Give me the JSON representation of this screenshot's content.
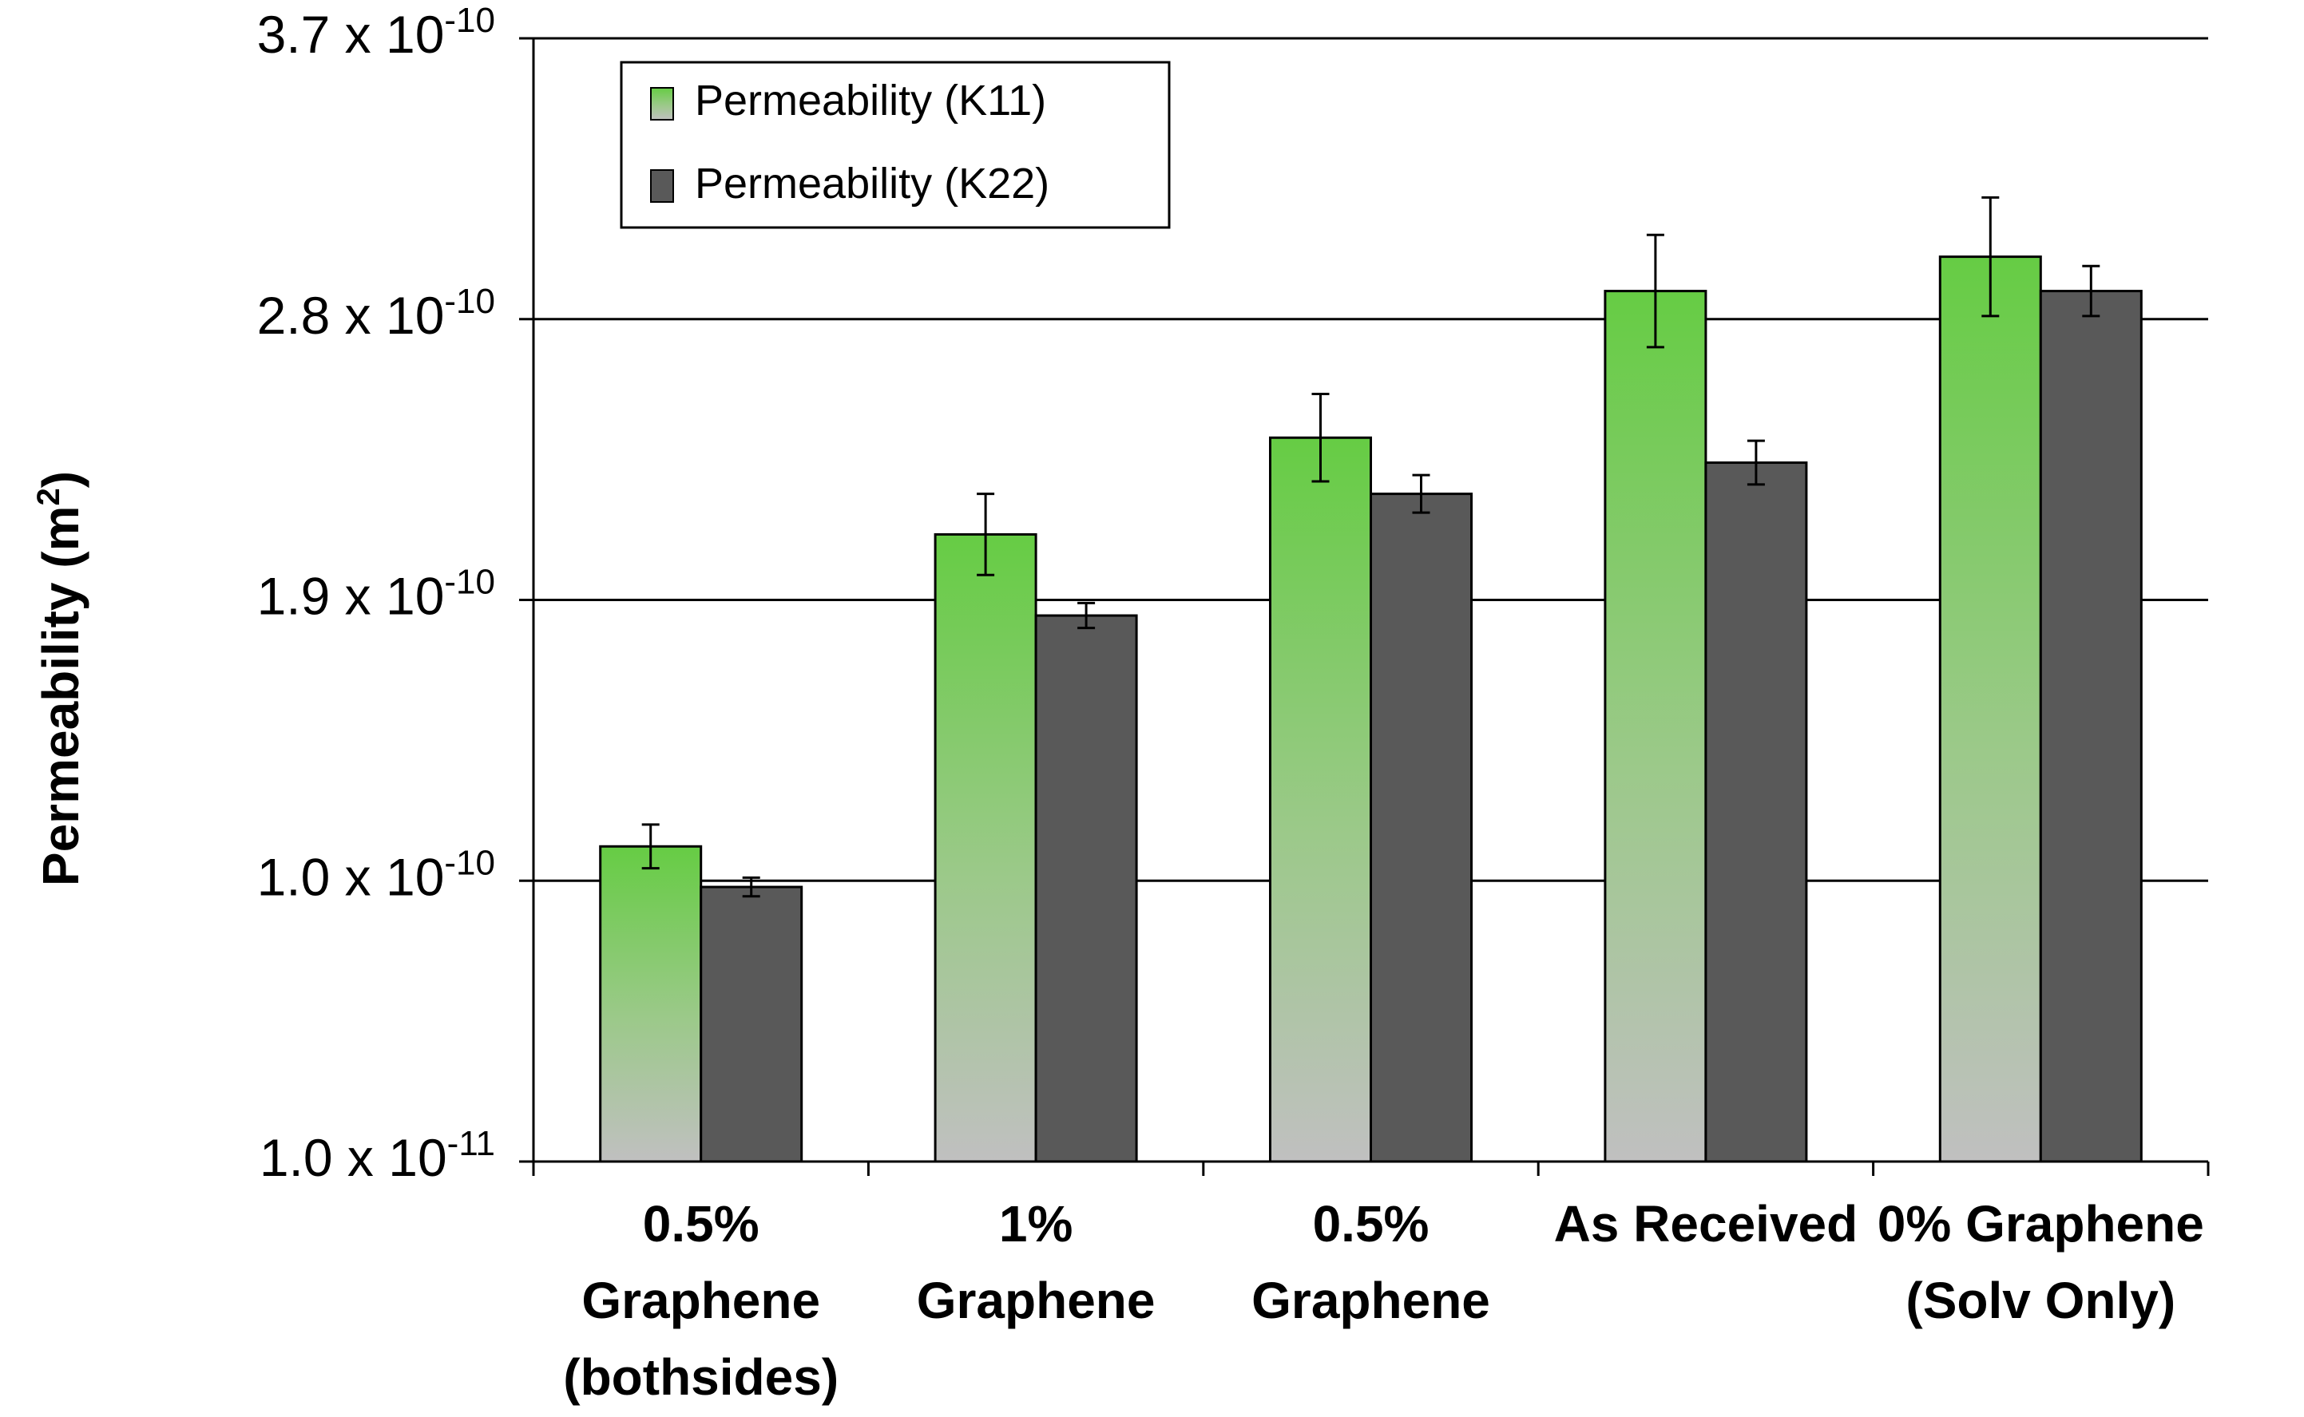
{
  "chart_data": {
    "type": "bar",
    "title": "",
    "xlabel": "",
    "ylabel": "Permeability (m",
    "ylabel_sup": "2",
    "ylabel_close": ")",
    "categories": [
      [
        "0.5%",
        "Graphene",
        "(bothsides)"
      ],
      [
        "1%",
        "Graphene"
      ],
      [
        "0.5%",
        "Graphene"
      ],
      [
        "As  Received"
      ],
      [
        "0% Graphene",
        "(Solv Only)"
      ]
    ],
    "yticks": [
      {
        "value": 0.1,
        "base": "1.0 x 10",
        "exp": "-11"
      },
      {
        "value": 1.0,
        "base": "1.0 x 10",
        "exp": "-10"
      },
      {
        "value": 1.9,
        "base": "1.9 x 10",
        "exp": "-10"
      },
      {
        "value": 2.8,
        "base": "2.8 x 10",
        "exp": "-10"
      },
      {
        "value": 3.7,
        "base": "3.7 x 10",
        "exp": "-10"
      }
    ],
    "ylim": [
      0.1,
      3.7
    ],
    "unit_note": "values in units of 1e-10 m^2",
    "grid": true,
    "legend_position": "top-left",
    "series": [
      {
        "name": "Permeability (K11)",
        "values": [
          1.11,
          2.11,
          2.42,
          2.89,
          3.0
        ],
        "errors": [
          0.07,
          0.13,
          0.14,
          0.18,
          0.19
        ],
        "color_top": "#66cc44",
        "color_bottom": "#c0c0c0"
      },
      {
        "name": "Permeability (K22)",
        "values": [
          0.98,
          1.85,
          2.24,
          2.34,
          2.89
        ],
        "errors": [
          0.03,
          0.04,
          0.06,
          0.07,
          0.08
        ],
        "color_top": "#595959",
        "color_bottom": "#595959"
      }
    ]
  }
}
